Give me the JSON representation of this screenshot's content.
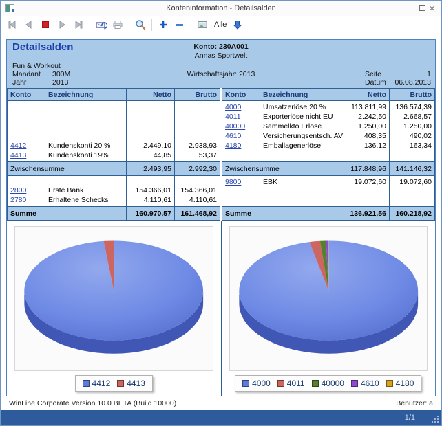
{
  "window": {
    "title": "Konteninformation - Detailsalden",
    "controls": {
      "close_glyph": "×"
    }
  },
  "toolbar": {
    "buttons": [
      "first",
      "previous",
      "stop",
      "next",
      "last",
      "send-mail",
      "print",
      "zoom",
      "zoom-in",
      "zoom-out",
      "image",
      "expand-all"
    ],
    "alle_label": "Alle"
  },
  "report": {
    "title": "Detailsalden",
    "konto_label": "Konto: 230A001",
    "konto_name": "Annas Sportwelt",
    "company": "Fun & Workout",
    "mandant_label": "Mandant",
    "mandant_value": "300M",
    "jahr_label": "Jahr",
    "jahr_value": "2013",
    "wirtschaftsjahr": "Wirtschaftsjahr: 2013",
    "seite_label": "Seite",
    "seite_value": "1",
    "datum_label": "Datum",
    "datum_value": "06.08.2013"
  },
  "tables": {
    "headers": [
      "Konto",
      "Bezeichnung",
      "Netto",
      "Brutto"
    ],
    "left": {
      "block1": [
        [
          "4412",
          "Kundenskonti 20 %",
          "2.449,10",
          "2.938,93"
        ],
        [
          "4413",
          "Kundenskonti 19%",
          "44,85",
          "53,37"
        ]
      ],
      "zwischensumme": [
        "Zwischensumme",
        "2.493,95",
        "2.992,30"
      ],
      "block2": [
        [
          "2800",
          "Erste Bank",
          "154.366,01",
          "154.366,01"
        ],
        [
          "2780",
          "Erhaltene Schecks",
          "4.110,61",
          "4.110,61"
        ]
      ],
      "summe": [
        "Summe",
        "160.970,57",
        "161.468,92"
      ]
    },
    "right": {
      "block1": [
        [
          "4000",
          "Umsatzerlöse 20 %",
          "113.811,99",
          "136.574,39"
        ],
        [
          "4011",
          "Exporterlöse nicht EU",
          "2.242,50",
          "2.668,57"
        ],
        [
          "40000",
          "Sammelkto Erlöse",
          "1.250,00",
          "1.250,00"
        ],
        [
          "4610",
          "Versicherungsentsch. AV",
          "408,35",
          "490,02"
        ],
        [
          "4180",
          "Emballagenerlöse",
          "136,12",
          "163,34"
        ]
      ],
      "zwischensumme": [
        "Zwischensumme",
        "117.848,96",
        "141.146,32"
      ],
      "block2": [
        [
          "9800",
          "EBK",
          "19.072,60",
          "19.072,60"
        ]
      ],
      "summe": [
        "Summe",
        "136.921,56",
        "160.218,92"
      ]
    }
  },
  "chart_data": [
    {
      "type": "pie",
      "categories": [
        "4412",
        "4413"
      ],
      "values": [
        2449.1,
        44.85
      ],
      "colors": [
        "#5e7bdc",
        "#cd6660"
      ],
      "legend_position": "bottom",
      "title": ""
    },
    {
      "type": "pie",
      "categories": [
        "4000",
        "4011",
        "40000",
        "4610",
        "4180"
      ],
      "values": [
        113811.99,
        2242.5,
        1250.0,
        408.35,
        136.12
      ],
      "colors": [
        "#5e7bdc",
        "#cd6660",
        "#55812c",
        "#9149d1",
        "#d8a322"
      ],
      "legend_position": "bottom",
      "title": ""
    }
  ],
  "footer": {
    "version": "WinLine Corporate Version 10.0 BETA (Build 10000)",
    "user": "Benutzer: a"
  },
  "statusbar": {
    "page": "1/1"
  }
}
